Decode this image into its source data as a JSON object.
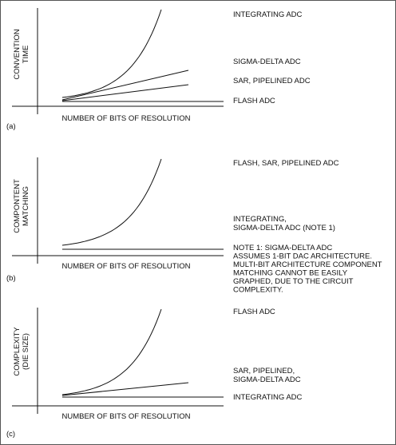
{
  "chart_data": [
    {
      "type": "line",
      "panel_label": "(a)",
      "xlabel": "NUMBER OF BITS OF RESOLUTION",
      "ylabel": [
        "CONVENTION",
        "TIME"
      ],
      "series": [
        {
          "name": "INTEGRATING ADC",
          "shape": "exponential"
        },
        {
          "name": "SIGMA-DELTA ADC",
          "shape": "linear"
        },
        {
          "name": "SAR, PIPELINED ADC",
          "shape": "linear"
        },
        {
          "name": "FLASH ADC",
          "shape": "flat"
        }
      ]
    },
    {
      "type": "line",
      "panel_label": "(b)",
      "xlabel": "NUMBER OF BITS OF RESOLUTION",
      "ylabel": [
        "COMPONTENT",
        "MATCHING"
      ],
      "series": [
        {
          "name": "FLASH, SAR, PIPELINED ADC",
          "shape": "exponential"
        },
        {
          "name": "INTEGRATING,\nSIGMA-DELTA ADC (NOTE 1)",
          "shape": "flat"
        }
      ],
      "note": "NOTE 1: SIGMA-DELTA ADC\nASSUMES 1-BIT DAC ARCHITECTURE.\nMULTI-BIT ARCHITECTURE COMPONENT\nMATCHING CANNOT BE EASILY\nGRAPHED, DUE TO THE CIRCUIT\nCOMPLEXITY."
    },
    {
      "type": "line",
      "panel_label": "(c)",
      "xlabel": "NUMBER OF BITS OF RESOLUTION",
      "ylabel": [
        "COMPLEXITY",
        "(DIE SIZE)"
      ],
      "series": [
        {
          "name": "FLASH ADC",
          "shape": "exponential"
        },
        {
          "name": "SAR, PIPELINED,\nSIGMA-DELTA ADC",
          "shape": "linear"
        },
        {
          "name": "INTEGRATING ADC",
          "shape": "flat"
        }
      ]
    }
  ],
  "colors": {
    "line": "#111111",
    "border": "#555555",
    "background": "#ffffff"
  }
}
